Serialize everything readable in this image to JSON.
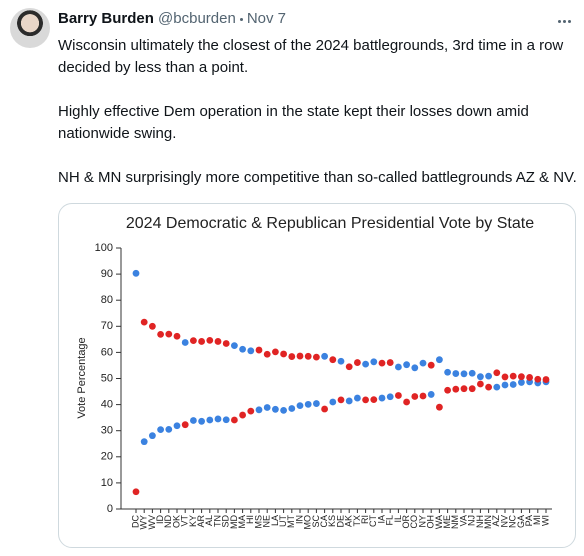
{
  "tweet": {
    "author": "Barry Burden",
    "handle": "@bcburden",
    "date": "Nov 7",
    "paragraphs": [
      "Wisconsin ultimately the closest of the 2024 battlegrounds, 3rd time in a row decided by less than a point.",
      "Highly effective Dem operation in the state kept their losses down amid nationwide swing.",
      "NH & MN surprisingly more competitive than so-called battlegrounds AZ & NV."
    ]
  },
  "chart_data": {
    "type": "scatter",
    "title": "2024 Democratic & Republican Presidential Vote by State",
    "y_label": "Vote Percentage",
    "categories": [
      "DC",
      "WY",
      "WV",
      "ID",
      "ND",
      "OK",
      "VT",
      "KY",
      "AR",
      "AL",
      "TN",
      "SD",
      "MD",
      "MA",
      "HI",
      "MS",
      "NE",
      "LA",
      "UT",
      "MT",
      "IN",
      "MO",
      "SC",
      "CA",
      "KS",
      "DE",
      "AK",
      "TX",
      "RI",
      "CT",
      "IA",
      "FL",
      "IL",
      "OR",
      "CO",
      "NY",
      "OH",
      "WA",
      "ME",
      "NM",
      "VA",
      "NJ",
      "NH",
      "MN",
      "AZ",
      "NV",
      "NC",
      "GA",
      "PA",
      "MI",
      "WI"
    ],
    "series": [
      {
        "color": "#3b82e0",
        "values": [
          90.3,
          25.8,
          28.1,
          30.4,
          30.5,
          31.9,
          63.8,
          33.9,
          33.6,
          34.1,
          34.5,
          34.2,
          62.6,
          61.2,
          60.6,
          38.0,
          38.9,
          38.2,
          37.8,
          38.5,
          39.6,
          40.1,
          40.4,
          58.5,
          41.0,
          56.6,
          41.4,
          42.5,
          55.5,
          56.4,
          42.5,
          43.0,
          54.4,
          55.3,
          54.1,
          55.9,
          43.9,
          57.2,
          52.4,
          51.9,
          51.8,
          52.0,
          50.7,
          50.9,
          46.7,
          47.5,
          47.7,
          48.5,
          48.7,
          48.3,
          48.7
        ]
      },
      {
        "color": "#e02424",
        "values": [
          6.6,
          71.6,
          70.0,
          66.9,
          67.0,
          66.2,
          32.3,
          64.5,
          64.2,
          64.6,
          64.2,
          63.4,
          34.1,
          36.0,
          37.5,
          60.9,
          59.3,
          60.2,
          59.4,
          58.4,
          58.6,
          58.5,
          58.2,
          38.3,
          57.2,
          41.8,
          54.5,
          56.1,
          41.8,
          41.9,
          55.9,
          56.1,
          43.5,
          41.0,
          43.1,
          43.3,
          55.1,
          39.0,
          45.5,
          45.9,
          46.1,
          46.1,
          47.9,
          46.7,
          52.2,
          50.6,
          50.9,
          50.7,
          50.4,
          49.7,
          49.6
        ]
      }
    ],
    "ylim": [
      0,
      100
    ],
    "yticks": [
      0,
      10,
      20,
      30,
      40,
      50,
      60,
      70,
      80,
      90,
      100
    ],
    "grid": false
  }
}
